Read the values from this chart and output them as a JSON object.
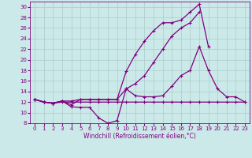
{
  "xlabel": "Windchill (Refroidissement éolien,°C)",
  "x_values": [
    0,
    1,
    2,
    3,
    4,
    5,
    6,
    7,
    8,
    9,
    10,
    11,
    12,
    13,
    14,
    15,
    16,
    17,
    18,
    19,
    20,
    21,
    22,
    23
  ],
  "series": [
    [
      12.5,
      12.0,
      11.8,
      12.2,
      11.1,
      11.0,
      11.0,
      9.0,
      8.0,
      8.5,
      14.5,
      13.2,
      13.0,
      13.0,
      13.2,
      15.0,
      17.0,
      18.0,
      22.5,
      18.0,
      14.5,
      13.0,
      13.0,
      12.0
    ],
    [
      12.5,
      12.0,
      11.8,
      12.2,
      11.5,
      12.5,
      12.5,
      12.5,
      12.5,
      12.5,
      17.8,
      21.0,
      23.5,
      25.5,
      27.0,
      27.0,
      27.5,
      29.0,
      30.5,
      22.5,
      null,
      null,
      null,
      null
    ],
    [
      12.5,
      12.0,
      11.8,
      12.2,
      12.2,
      12.5,
      12.5,
      12.5,
      12.5,
      12.5,
      14.5,
      15.5,
      17.0,
      19.5,
      22.0,
      24.5,
      26.0,
      27.0,
      29.0,
      null,
      null,
      null,
      null,
      null
    ],
    [
      12.5,
      12.0,
      11.8,
      12.0,
      12.0,
      12.0,
      12.0,
      12.0,
      12.0,
      12.0,
      12.0,
      12.0,
      12.0,
      12.0,
      12.0,
      12.0,
      12.0,
      12.0,
      12.0,
      12.0,
      12.0,
      12.0,
      12.0,
      12.0
    ]
  ],
  "line_color": "#800080",
  "bg_color": "#cce9e9",
  "grid_color": "#aacccc",
  "ylim": [
    8,
    31
  ],
  "xlim": [
    -0.5,
    23.5
  ],
  "yticks": [
    8,
    10,
    12,
    14,
    16,
    18,
    20,
    22,
    24,
    26,
    28,
    30
  ],
  "xticks": [
    0,
    1,
    2,
    3,
    4,
    5,
    6,
    7,
    8,
    9,
    10,
    11,
    12,
    13,
    14,
    15,
    16,
    17,
    18,
    19,
    20,
    21,
    22,
    23
  ],
  "tick_fontsize": 5,
  "xlabel_fontsize": 5.5,
  "marker_size": 3,
  "linewidth": 0.9
}
